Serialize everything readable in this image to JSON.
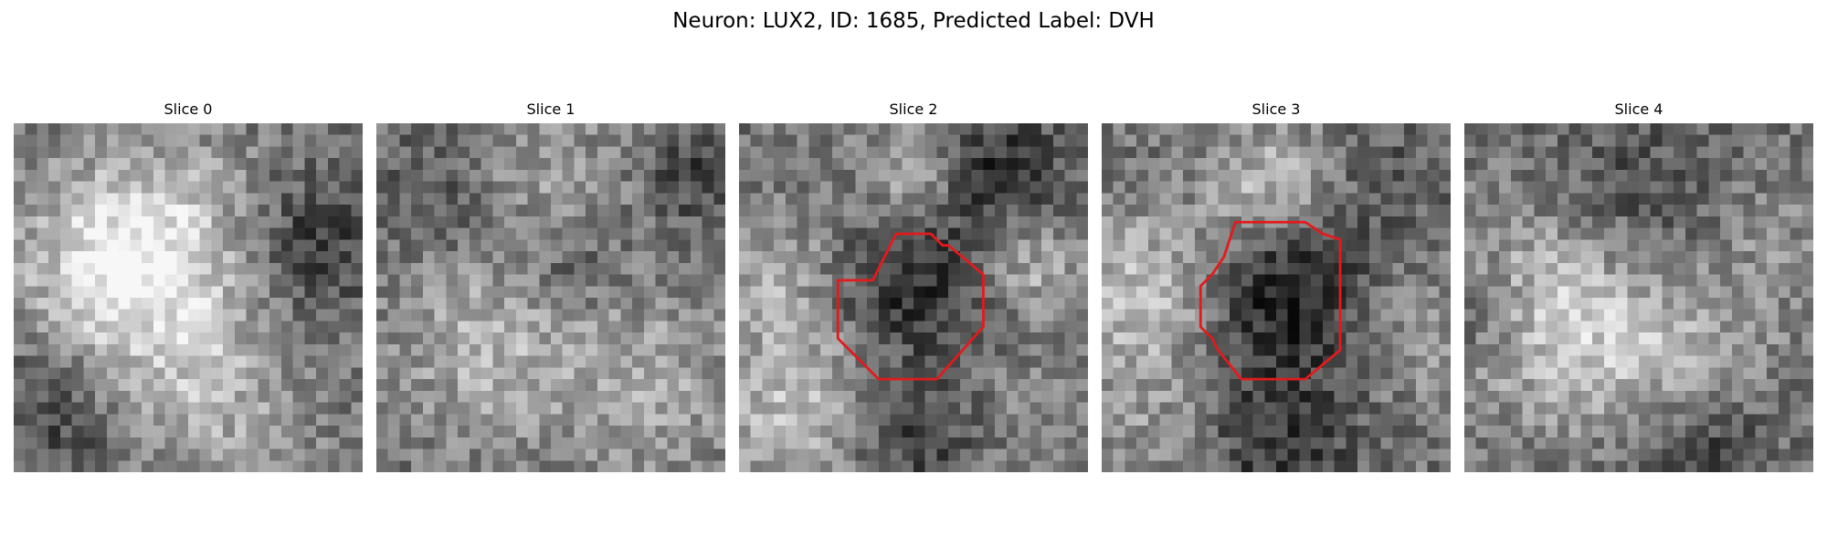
{
  "figure": {
    "title": "Neuron: LUX2, ID: 1685, Predicted Label: DVH"
  },
  "panels": [
    {
      "title": "Slice 0",
      "has_contour": false
    },
    {
      "title": "Slice 1",
      "has_contour": false
    },
    {
      "title": "Slice 2",
      "has_contour": true
    },
    {
      "title": "Slice 3",
      "has_contour": true
    },
    {
      "title": "Slice 4",
      "has_contour": false
    }
  ],
  "colors": {
    "contour": "#e31a1c",
    "background": "#ffffff"
  }
}
